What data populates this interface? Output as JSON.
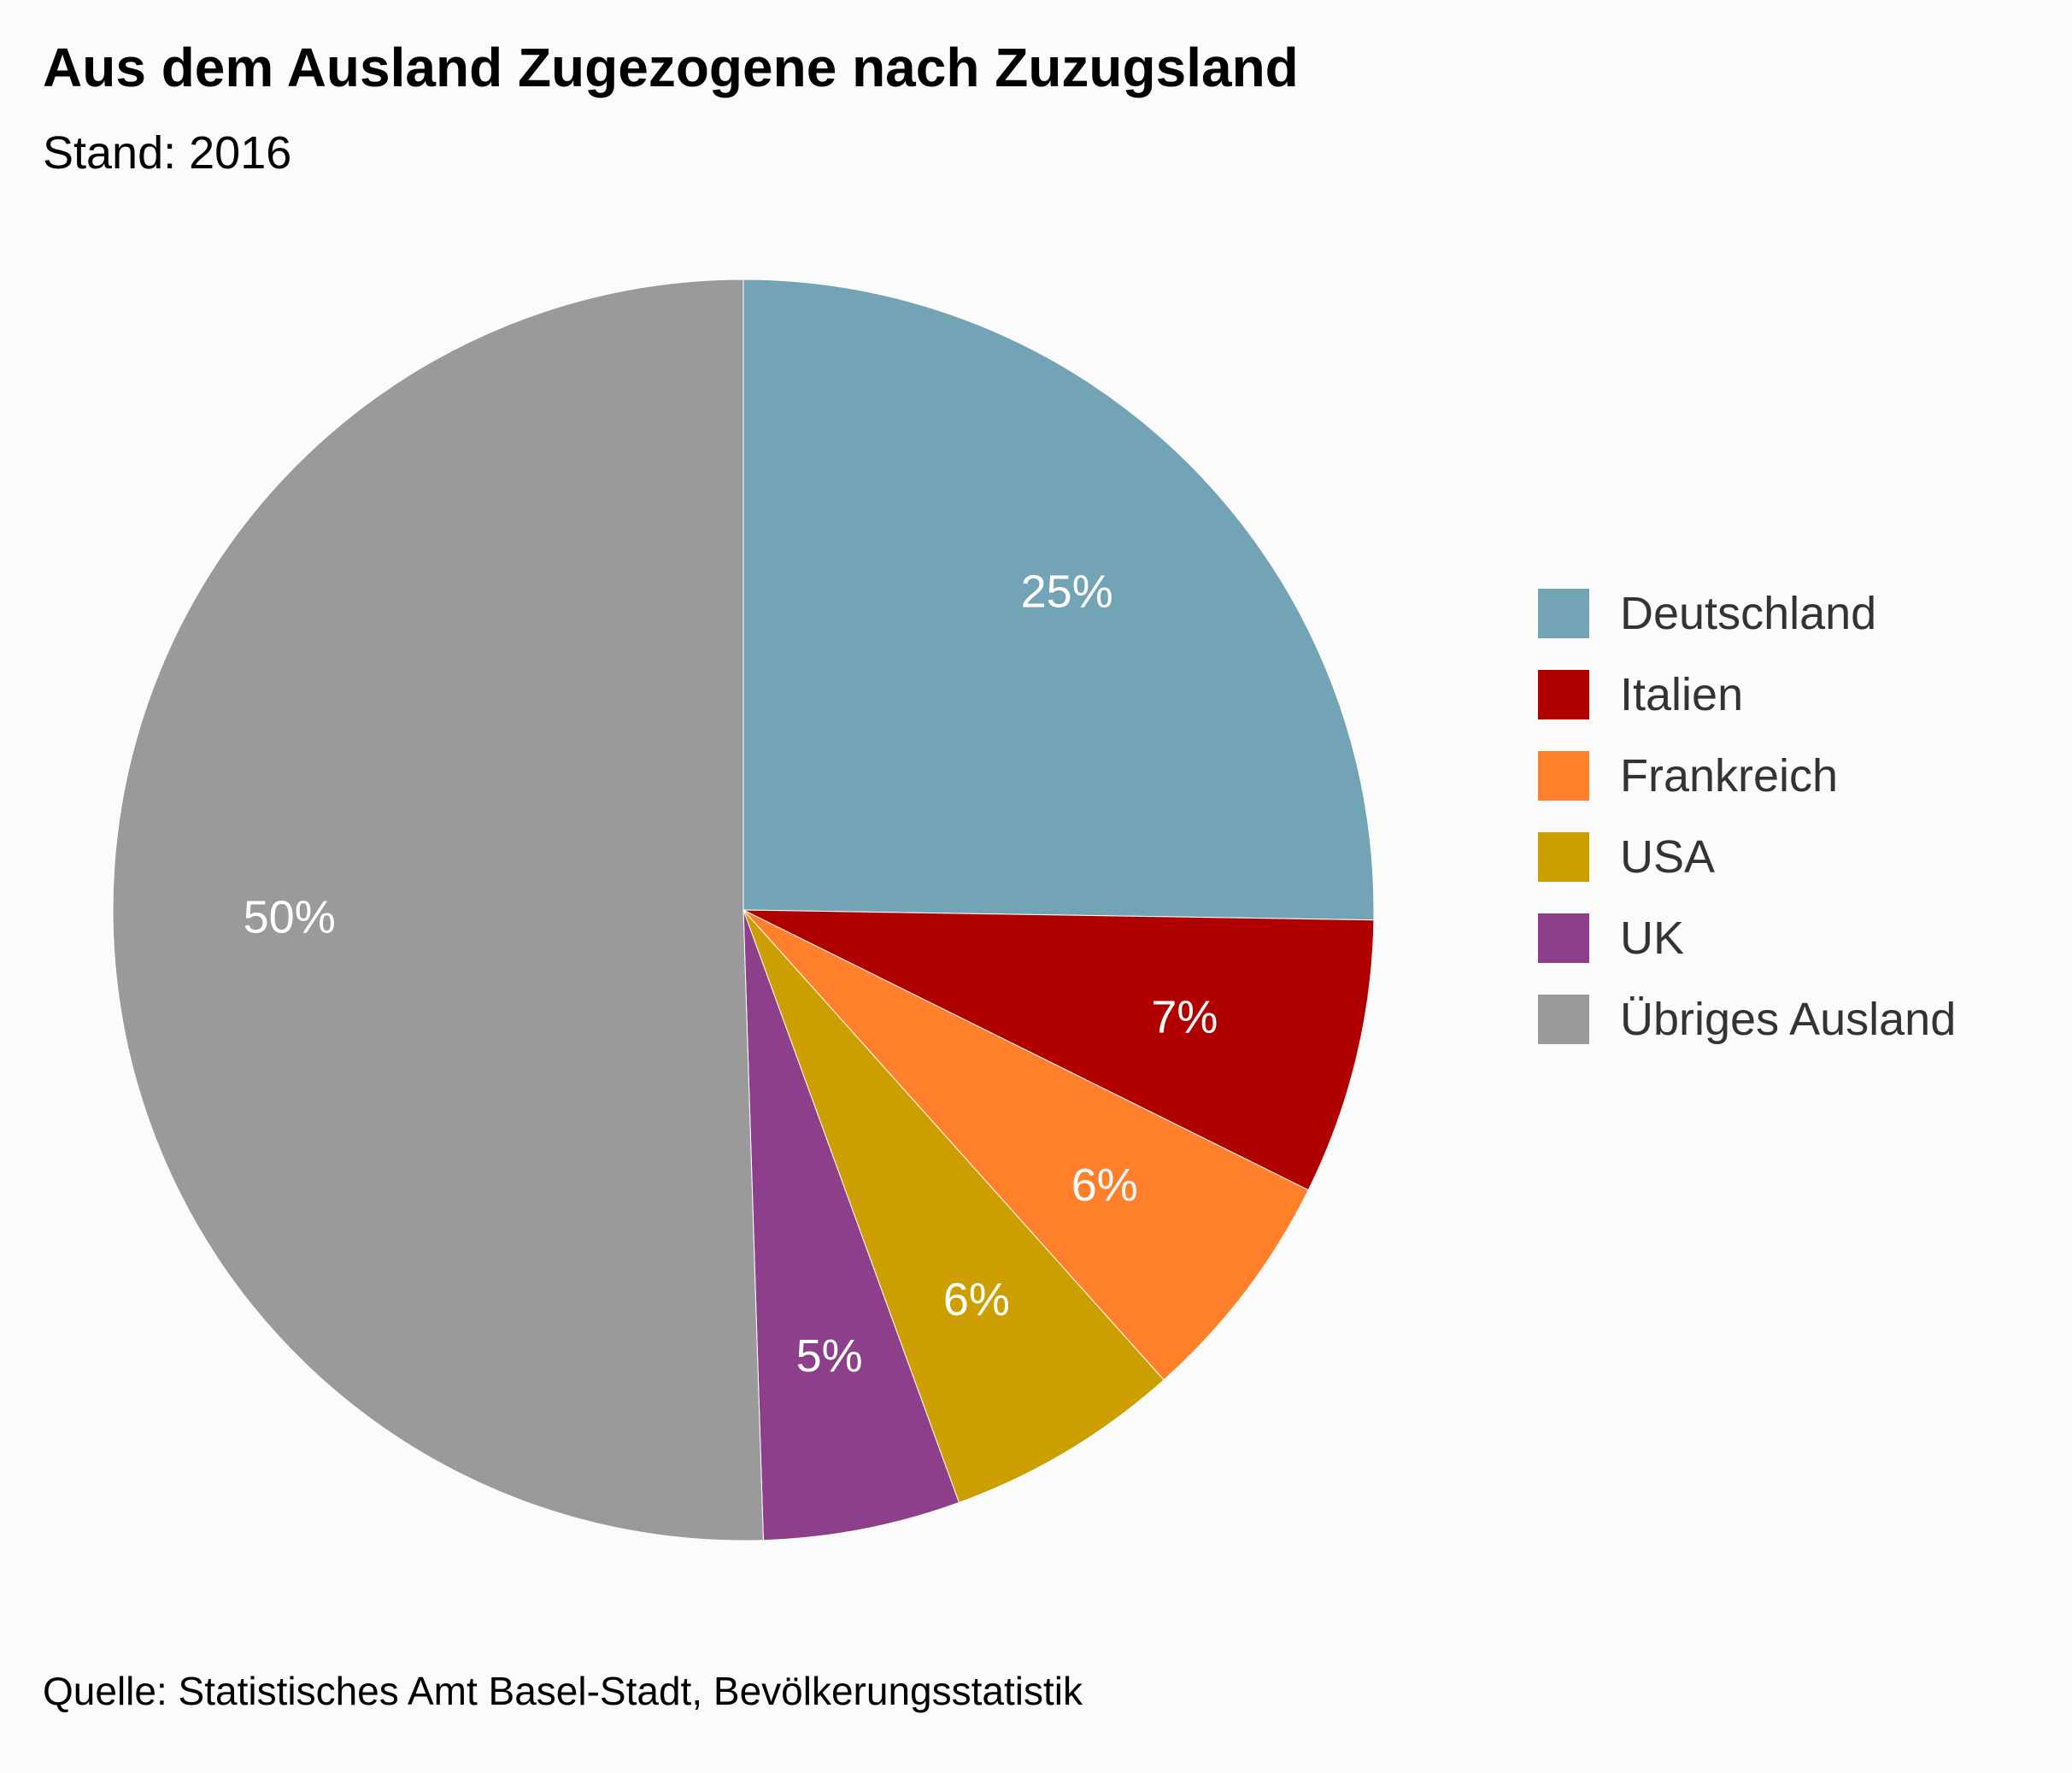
{
  "title": "Aus dem Ausland Zugezogene nach Zuzugsland",
  "subtitle": "Stand: 2016",
  "source": "Quelle: Statistisches Amt Basel-Stadt, Bevölkerungsstatistik",
  "chart_data": {
    "type": "pie",
    "title": "Aus dem Ausland Zugezogene nach Zuzugsland",
    "subtitle": "Stand: 2016",
    "legend_position": "right",
    "categories": [
      "Deutschland",
      "Italien",
      "Frankreich",
      "USA",
      "UK",
      "Übriges Ausland"
    ],
    "values": [
      25,
      7,
      6,
      6,
      5,
      50
    ],
    "labels": [
      "25%",
      "7%",
      "6%",
      "6%",
      "5%",
      "50%"
    ],
    "colors": [
      "#73a4b6",
      "#b00000",
      "#ff7f2a",
      "#cc9e00",
      "#8e3f8c",
      "#9a9a9a"
    ],
    "start_angle": "12 o'clock",
    "direction": "clockwise"
  }
}
